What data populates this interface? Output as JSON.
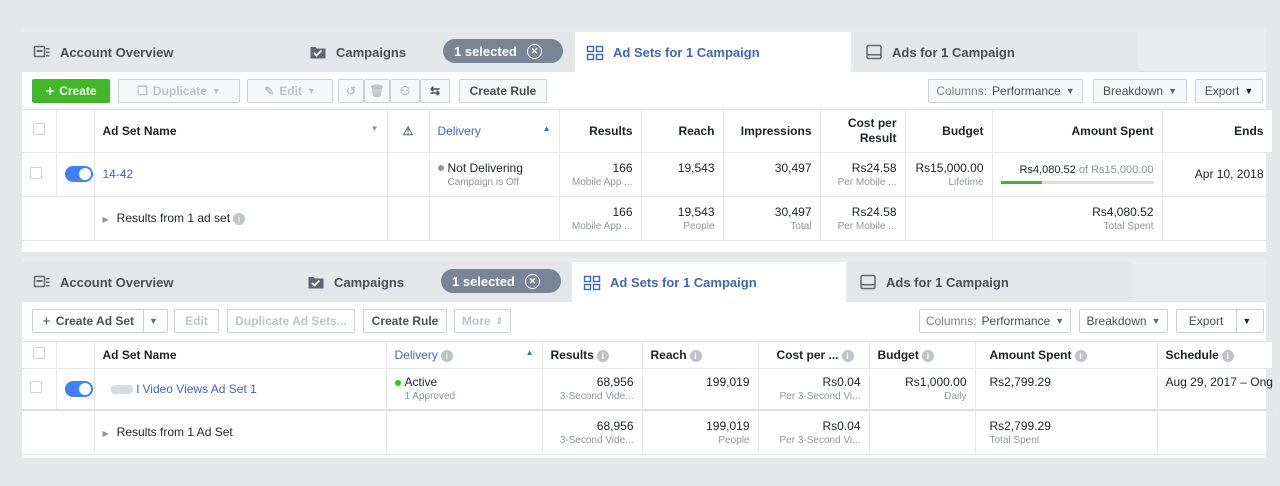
{
  "panel1": {
    "tabs": {
      "account_overview": "Account Overview",
      "campaigns": "Campaigns",
      "selected": "1 selected",
      "ad_sets": "Ad Sets for 1 Campaign",
      "ads": "Ads for 1 Campaign"
    },
    "toolbar": {
      "create": "Create",
      "duplicate": "Duplicate",
      "edit": "Edit",
      "create_rule": "Create Rule",
      "columns_label": "Columns:",
      "columns_value": "Performance",
      "breakdown": "Breakdown",
      "export": "Export"
    },
    "headers": {
      "name": "Ad Set Name",
      "delivery": "Delivery",
      "results": "Results",
      "reach": "Reach",
      "impressions": "Impressions",
      "cpr": "Cost per Result",
      "budget": "Budget",
      "spent": "Amount Spent",
      "ends": "Ends"
    },
    "row": {
      "name": "14-42",
      "delivery": "Not Delivering",
      "delivery_sub": "Campaign is Off",
      "results": "166",
      "results_sub": "Mobile App ...",
      "reach": "19,543",
      "impressions": "30,497",
      "cpr": "Rs24.58",
      "cpr_sub": "Per Mobile ...",
      "budget": "Rs15,000.00",
      "budget_sub": "Lifetime",
      "spent": "Rs4,080.52",
      "spent_of": "of",
      "spent_total": "Rs15,000.00",
      "spent_progress": 0.27,
      "ends": "Apr 10, 2018"
    },
    "summary": {
      "label": "Results from 1 ad set",
      "results": "166",
      "results_sub": "Mobile App ...",
      "reach": "19,543",
      "reach_sub": "People",
      "impressions": "30,497",
      "impressions_sub": "Total",
      "cpr": "Rs24.58",
      "cpr_sub": "Per Mobile ...",
      "spent": "Rs4,080.52",
      "spent_sub": "Total Spent"
    }
  },
  "panel2": {
    "tabs": {
      "account_overview": "Account Overview",
      "campaigns": "Campaigns",
      "selected": "1 selected",
      "ad_sets": "Ad Sets for 1 Campaign",
      "ads": "Ads for 1 Campaign"
    },
    "toolbar": {
      "create_ad_set": "Create Ad Set",
      "edit": "Edit",
      "duplicate_ad_sets": "Duplicate Ad Sets...",
      "create_rule": "Create Rule",
      "more": "More",
      "columns_label": "Columns:",
      "columns_value": "Performance",
      "breakdown": "Breakdown",
      "export": "Export"
    },
    "headers": {
      "name": "Ad Set Name",
      "delivery": "Delivery",
      "results": "Results",
      "reach": "Reach",
      "cpr": "Cost per ...",
      "budget": "Budget",
      "spent": "Amount Spent",
      "schedule": "Schedule"
    },
    "row": {
      "name": "l Video Views Ad Set 1",
      "delivery": "Active",
      "delivery_sub": "1 Approved",
      "results": "68,956",
      "results_sub": "3-Second Vide...",
      "reach": "199,019",
      "cpr": "Rs0.04",
      "cpr_sub": "Per 3-Second Vi...",
      "budget": "Rs1,000.00",
      "budget_sub": "Daily",
      "spent": "Rs2,799.29",
      "schedule": "Aug 29, 2017 – Ong"
    },
    "summary": {
      "label": "Results from 1 Ad Set",
      "results": "68,956",
      "results_sub": "3-Second Vide...",
      "reach": "199,019",
      "reach_sub": "People",
      "cpr": "Rs0.04",
      "cpr_sub": "Per 3-Second Vi...",
      "spent": "Rs2,799.29",
      "spent_sub": "Total Spent"
    }
  },
  "colors": {
    "accent": "#4267b2",
    "create_green": "#42b72a",
    "toggle_blue": "#4080ff",
    "pill_gray": "#7a8499",
    "active_dot": "#42b72a",
    "inactive_dot": "#90949c"
  },
  "icons": [
    "account-overview-icon",
    "campaigns-folder-icon",
    "ad-sets-grid-icon",
    "ads-icon",
    "close-circle-icon",
    "warning-icon",
    "info-icon",
    "trash-icon",
    "undo-icon",
    "compare-icon",
    "preview-icon",
    "pencil-icon"
  ]
}
